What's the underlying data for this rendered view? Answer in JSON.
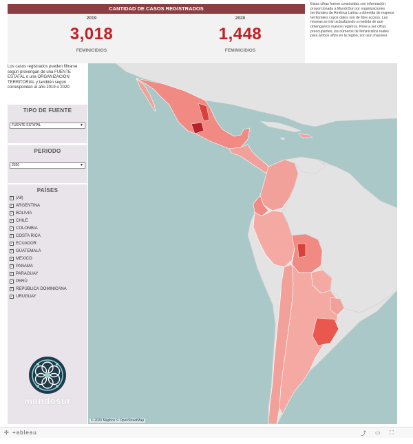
{
  "header": {
    "title": "CANTIDAD DE CASOS REGISTRADOS"
  },
  "kpis": [
    {
      "year": "2019",
      "value": "3,018",
      "label": "FEMINICIDIOS"
    },
    {
      "year": "2020",
      "value": "1,448",
      "label": "FEMINICIDIOS"
    }
  ],
  "info_text": "Estas cifras fueron construidas con información proporcionada a MundoSur por organizaciones territoriales de América Latina u obtenida de mapeos territoriales cuyos datos son de libre acceso. Las mismas se irán actualizando a medida de que obtengamos nuevos registros. Pese a ser cifras preocupantes, los números de feminicidios reales para ambos años en la región, son aún mayores.",
  "left": {
    "intro": "Los casos registrados pueden filtrarse según provengan de una FUENTE ESTATAL o una ORGANIZACIÓN TERRITORIAL y también según correspondan al año 2019 o 2020.",
    "fuente": {
      "title": "TIPO DE FUENTE",
      "selected": "FUENTE ESTATAL"
    },
    "periodo": {
      "title": "PERIODO",
      "selected": "2020"
    },
    "paises": {
      "title": "PAÍSES",
      "items": [
        "(All)",
        "ARGENTINA",
        "BOLIVIA",
        "CHILE",
        "COLOMBIA",
        "COSTA RICA",
        "ECUADOR",
        "GUATEMALA",
        "MEXICO",
        "PANAMA",
        "PARAGUAY",
        "PERÚ",
        "REPÚBLICA DOMINICANA",
        "URUGUAY"
      ]
    }
  },
  "logo": {
    "text": "mundosur"
  },
  "map": {
    "attribution": "© 2020 Mapbox © OpenStreetMap"
  },
  "footer": {
    "brand": "+ableau"
  },
  "colors": {
    "header_bg": "#8c3f43",
    "kpi_red": "#c01f24",
    "ocean": "#abc8c8",
    "land": "#e3e3e3"
  }
}
